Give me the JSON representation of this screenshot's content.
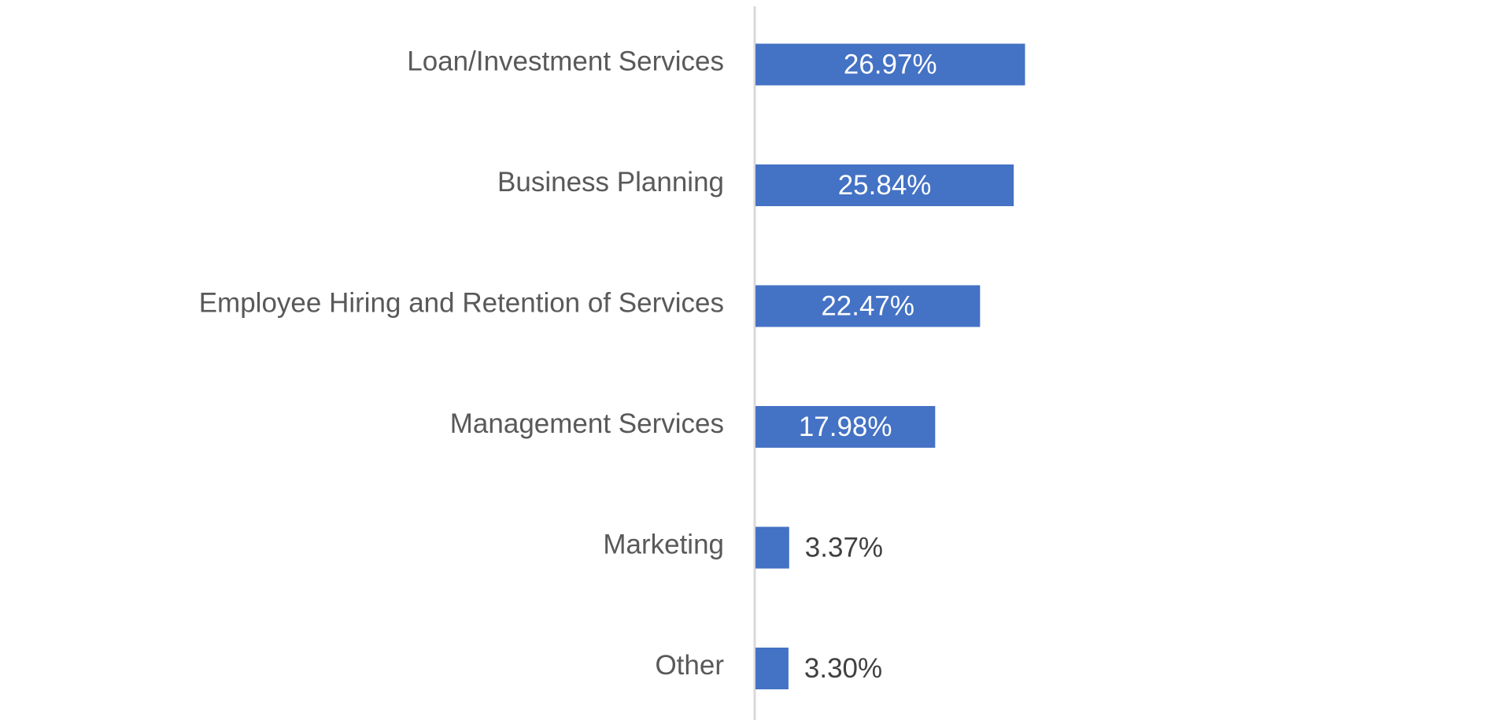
{
  "chart_data": {
    "type": "bar",
    "orientation": "horizontal",
    "categories": [
      "Loan/Investment Services",
      "Business Planning",
      "Employee Hiring and Retention of Services",
      "Management Services",
      "Marketing",
      "Other"
    ],
    "values": [
      26.97,
      25.84,
      22.47,
      17.98,
      3.37,
      3.3
    ],
    "value_labels": [
      "26.97%",
      "25.84%",
      "22.47%",
      "17.98%",
      "3.37%",
      "3.30%"
    ],
    "color": "#4472c4"
  }
}
